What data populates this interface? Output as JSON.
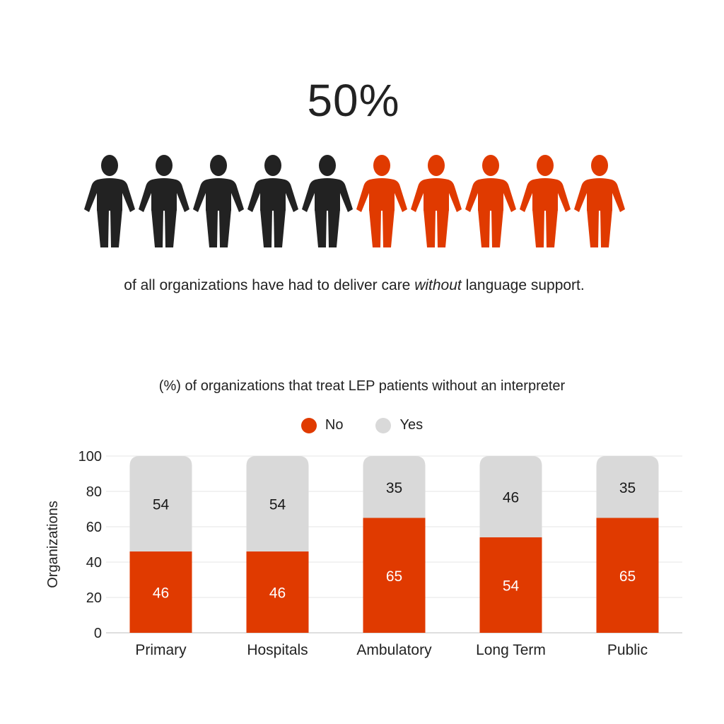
{
  "headline": {
    "stat": "50%",
    "caption_before": "of all organizations have had to deliver care ",
    "caption_emphasis": "without",
    "caption_after": " language support."
  },
  "pictogram": {
    "total": 10,
    "highlighted": 5,
    "dark_color": "#222222",
    "accent_color": "#e03a00",
    "icon": "person-icon"
  },
  "chart_data": {
    "type": "bar",
    "stacked": true,
    "title": "(%) of organizations that treat LEP patients without an interpreter",
    "ylabel": "Organizations",
    "xlabel": "",
    "ylim": [
      0,
      100
    ],
    "yticks": [
      0,
      20,
      40,
      60,
      80,
      100
    ],
    "grid": true,
    "legend_position": "top-center",
    "categories": [
      "Primary",
      "Hospitals",
      "Ambulatory",
      "Long Term",
      "Public"
    ],
    "series": [
      {
        "name": "No",
        "color": "#e03a00",
        "values": [
          46,
          46,
          65,
          54,
          65
        ]
      },
      {
        "name": "Yes",
        "color": "#d9d9d9",
        "values": [
          54,
          54,
          35,
          46,
          35
        ]
      }
    ]
  }
}
